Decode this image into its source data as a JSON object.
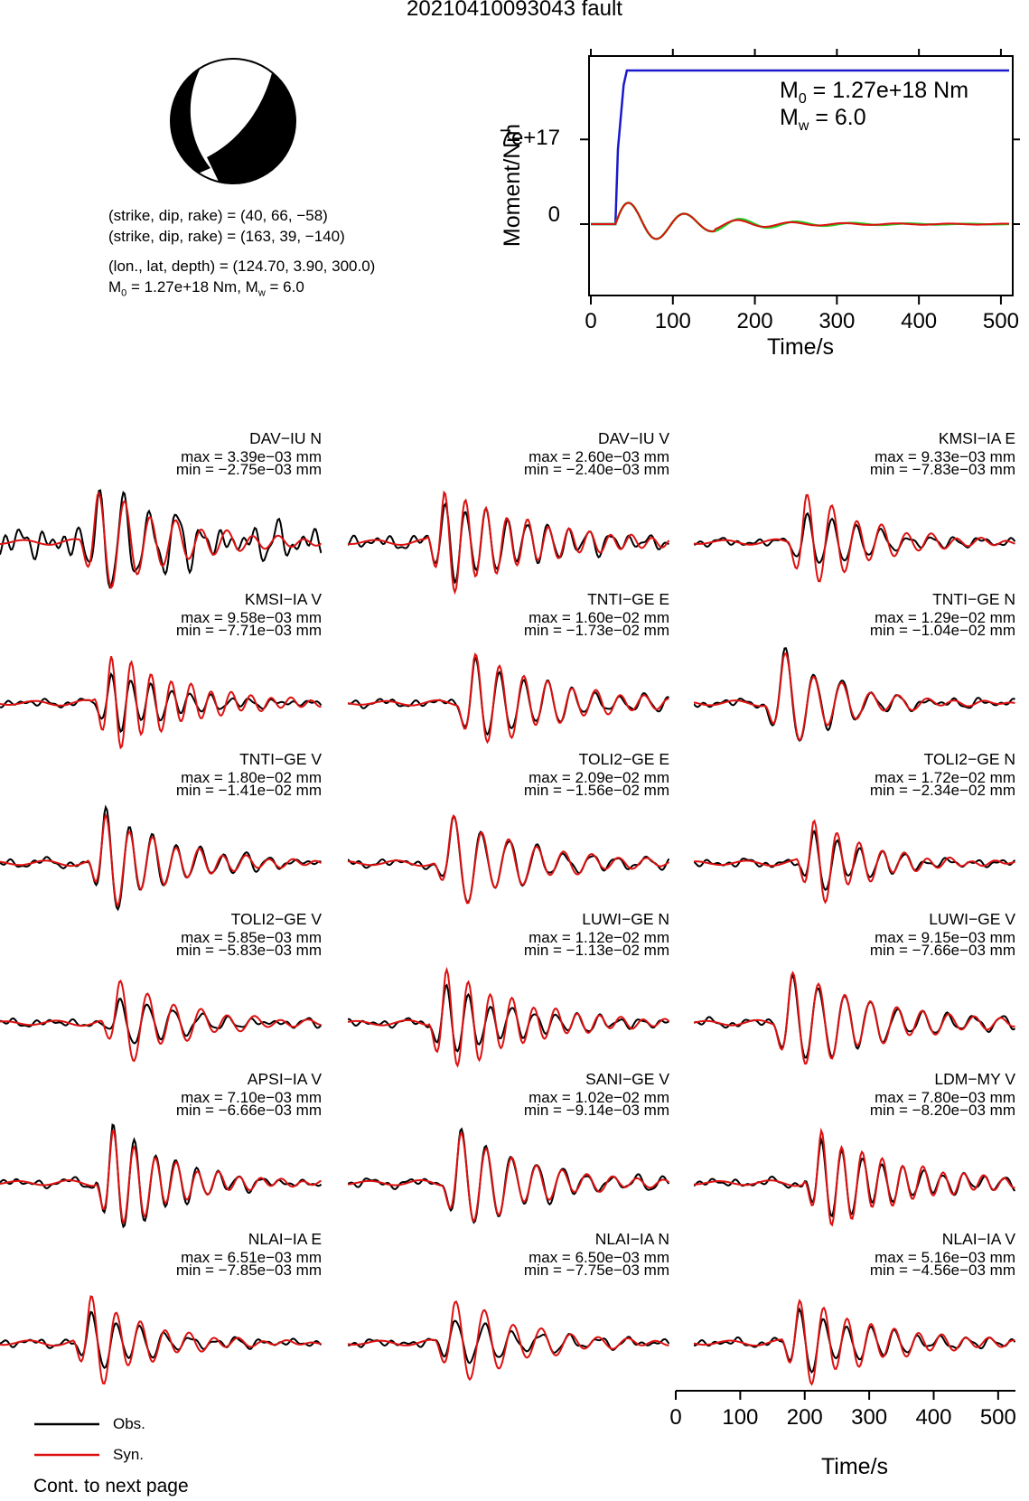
{
  "header": {
    "title": "20210410093043 fault"
  },
  "mechanism": {
    "lines": [
      "(strike, dip, rake) = (40, 66, −58)",
      "(strike, dip, rake) = (163, 39, −140)",
      "(lon., lat, depth) = (124.70, 3.90, 300.0)"
    ],
    "m0_label": "M",
    "m0_sub": "0",
    "m0_rest": " = 1.27e+18 Nm, M",
    "mw_sub": "w",
    "mw_rest": " = 6.0"
  },
  "stf_panel": {
    "ylabel": "Moment/Nm",
    "xlabel": "Time/s",
    "yticks": [
      "7e+17",
      "0"
    ],
    "xticks": [
      "0",
      "100",
      "200",
      "300",
      "400",
      "500"
    ],
    "m0_main": "M",
    "m0_sub": "0",
    "m0_val": " = 1.27e+18 Nm",
    "mw_main": "M",
    "mw_sub": "w",
    "mw_val": " = 6.0"
  },
  "chart_data": {
    "type": "line",
    "moment_function": {
      "x_range": [
        0,
        510
      ],
      "y_value_at_top": 1.27e+18,
      "y_ticks_values": [
        0,
        7e+17
      ],
      "cumulative_moment": [
        [
          0,
          0
        ],
        [
          30,
          0
        ],
        [
          33,
          6.2e+17
        ],
        [
          40,
          1.15e+18
        ],
        [
          44,
          1.27e+18
        ],
        [
          510,
          1.27e+18
        ]
      ]
    },
    "waveform_x_range": [
      0,
      510
    ],
    "waveform_xticks": [
      "0",
      "100",
      "200",
      "300",
      "400",
      "500"
    ],
    "waveform_xlabel": "Time/s",
    "legend": [
      {
        "name": "Obs.",
        "color": "#000000"
      },
      {
        "name": "Syn.",
        "color": "#dd1111"
      }
    ],
    "stations": [
      {
        "name": "DAV−IU N",
        "max": "max = 3.39e−03 mm",
        "min": "min = −2.75e−03 mm"
      },
      {
        "name": "DAV−IU V",
        "max": "max = 2.60e−03 mm",
        "min": "min = −2.40e−03 mm"
      },
      {
        "name": "KMSI−IA E",
        "max": "max = 9.33e−03 mm",
        "min": "min = −7.83e−03 mm"
      },
      {
        "name": "KMSI−IA V",
        "max": "max = 9.58e−03 mm",
        "min": "min = −7.71e−03 mm"
      },
      {
        "name": "TNTI−GE E",
        "max": "max = 1.60e−02 mm",
        "min": "min = −1.73e−02 mm"
      },
      {
        "name": "TNTI−GE N",
        "max": "max = 1.29e−02 mm",
        "min": "min = −1.04e−02 mm"
      },
      {
        "name": "TNTI−GE V",
        "max": "max = 1.80e−02 mm",
        "min": "min = −1.41e−02 mm"
      },
      {
        "name": "TOLI2−GE E",
        "max": "max = 2.09e−02 mm",
        "min": "min = −1.56e−02 mm"
      },
      {
        "name": "TOLI2−GE N",
        "max": "max = 1.72e−02 mm",
        "min": "min = −2.34e−02 mm"
      },
      {
        "name": "TOLI2−GE V",
        "max": "max = 5.85e−03 mm",
        "min": "min = −5.83e−03 mm"
      },
      {
        "name": "LUWI−GE N",
        "max": "max = 1.12e−02 mm",
        "min": "min = −1.13e−02 mm"
      },
      {
        "name": "LUWI−GE V",
        "max": "max = 9.15e−03 mm",
        "min": "min = −7.66e−03 mm"
      },
      {
        "name": "APSI−IA V",
        "max": "max = 7.10e−03 mm",
        "min": "min = −6.66e−03 mm"
      },
      {
        "name": "SANI−GE V",
        "max": "max = 1.02e−02 mm",
        "min": "min = −9.14e−03 mm"
      },
      {
        "name": "LDM−MY V",
        "max": "max = 7.80e−03 mm",
        "min": "min = −8.20e−03 mm"
      },
      {
        "name": "NLAI−IA E",
        "max": "max = 6.51e−03 mm",
        "min": "min = −7.85e−03 mm"
      },
      {
        "name": "NLAI−IA N",
        "max": "max = 6.50e−03 mm",
        "min": "min = −7.75e−03 mm"
      },
      {
        "name": "NLAI−IA V",
        "max": "max = 5.16e−03 mm",
        "min": "min = −4.56e−03 mm"
      }
    ]
  },
  "colors": {
    "observed": "#000000",
    "synthetic": "#dd1111",
    "cumulative_moment": "#1a1acc",
    "moment_rate_fit": "#22cc22"
  },
  "footer": {
    "text": "Cont. to next page"
  }
}
